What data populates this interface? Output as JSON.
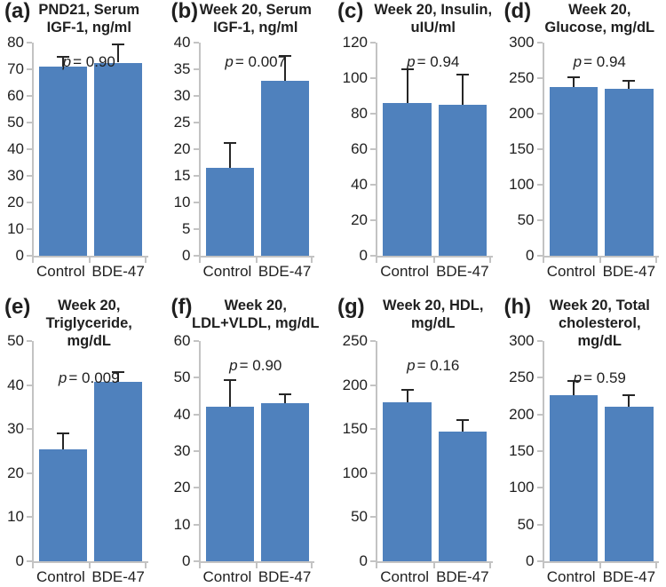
{
  "figure": {
    "description": "Eight-panel bar chart figure comparing Control vs BDE-47 groups",
    "group_labels": [
      "Control",
      "BDE-47"
    ]
  },
  "colors": {
    "bar": "#4F81BD",
    "axis": "#c3c3c3",
    "error_bar": "#262626",
    "text": "#1f1f1f"
  },
  "chart_data": [
    {
      "type": "bar",
      "letter": "(a)",
      "title": "PND21, Serum IGF-1, ng/ml",
      "title_lines": [
        "PND21, Serum",
        "IGF-1, ng/ml"
      ],
      "p_symbol": "p",
      "p_value": "= 0.90",
      "categories": [
        "Control",
        "BDE-47"
      ],
      "values": [
        71,
        72.5
      ],
      "errors_plus": [
        4,
        7
      ],
      "xlabel": "",
      "ylabel": "",
      "ylim": [
        0,
        80
      ],
      "ystep": 10,
      "grid": false,
      "legend": "none"
    },
    {
      "type": "bar",
      "letter": "(b)",
      "title": "Week 20, Serum IGF-1, ng/ml",
      "title_lines": [
        "Week 20, Serum",
        "IGF-1, ng/ml"
      ],
      "p_symbol": "p",
      "p_value": "= 0.007",
      "categories": [
        "Control",
        "BDE-47"
      ],
      "values": [
        16.5,
        32.8
      ],
      "errors_plus": [
        4.9,
        4.8
      ],
      "xlabel": "",
      "ylabel": "",
      "ylim": [
        0,
        40
      ],
      "ystep": 5,
      "grid": false,
      "legend": "none"
    },
    {
      "type": "bar",
      "letter": "(c)",
      "title": "Week 20, Insulin, uIU/ml",
      "title_lines": [
        "Week 20, Insulin,",
        "uIU/ml"
      ],
      "p_symbol": "p",
      "p_value": "= 0.94",
      "categories": [
        "Control",
        "BDE-47"
      ],
      "values": [
        86,
        85
      ],
      "errors_plus": [
        19.5,
        17.5
      ],
      "xlabel": "",
      "ylabel": "",
      "ylim": [
        0,
        120
      ],
      "ystep": 20,
      "grid": false,
      "legend": "none"
    },
    {
      "type": "bar",
      "letter": "(d)",
      "title": "Week 20, Glucose, mg/dL",
      "title_lines": [
        "Week 20,",
        "Glucose, mg/dL"
      ],
      "p_symbol": "p",
      "p_value": "= 0.94",
      "categories": [
        "Control",
        "BDE-47"
      ],
      "values": [
        237,
        235
      ],
      "errors_plus": [
        16,
        13
      ],
      "xlabel": "",
      "ylabel": "",
      "ylim": [
        0,
        300
      ],
      "ystep": 50,
      "grid": false,
      "legend": "none"
    },
    {
      "type": "bar",
      "letter": "(e)",
      "title": "Week 20, Triglyceride, mg/dL",
      "title_lines": [
        "Week 20,",
        "Triglyceride,",
        "mg/dL"
      ],
      "p_symbol": "p",
      "p_value": "= 0.009",
      "categories": [
        "Control",
        "BDE-47"
      ],
      "values": [
        25.5,
        40.7
      ],
      "errors_plus": [
        3.8,
        2.5
      ],
      "xlabel": "",
      "ylabel": "",
      "ylim": [
        0,
        50
      ],
      "ystep": 10,
      "grid": false,
      "legend": "none"
    },
    {
      "type": "bar",
      "letter": "(f)",
      "title": "Week 20, LDL+VLDL, mg/dL",
      "title_lines": [
        "Week 20,",
        "LDL+VLDL, mg/dL"
      ],
      "p_symbol": "p",
      "p_value": "= 0.90",
      "categories": [
        "Control",
        "BDE-47"
      ],
      "values": [
        42,
        43
      ],
      "errors_plus": [
        7.5,
        2.7
      ],
      "xlabel": "",
      "ylabel": "",
      "ylim": [
        0,
        60
      ],
      "ystep": 10,
      "grid": false,
      "legend": "none"
    },
    {
      "type": "bar",
      "letter": "(g)",
      "title": "Week 20, HDL, mg/dL",
      "title_lines": [
        "Week 20, HDL,",
        "mg/dL"
      ],
      "p_symbol": "p",
      "p_value": "= 0.16",
      "categories": [
        "Control",
        "BDE-47"
      ],
      "values": [
        180,
        147
      ],
      "errors_plus": [
        16,
        14
      ],
      "xlabel": "",
      "ylabel": "",
      "ylim": [
        0,
        250
      ],
      "ystep": 50,
      "grid": false,
      "legend": "none"
    },
    {
      "type": "bar",
      "letter": "(h)",
      "title": "Week 20, Total cholesterol, mg/dL",
      "title_lines": [
        "Week 20, Total",
        "cholesterol,",
        "mg/dL"
      ],
      "p_symbol": "p",
      "p_value": "= 0.59",
      "categories": [
        "Control",
        "BDE-47"
      ],
      "values": [
        226,
        211
      ],
      "errors_plus": [
        21,
        17
      ],
      "xlabel": "",
      "ylabel": "",
      "ylim": [
        0,
        300
      ],
      "ystep": 50,
      "grid": false,
      "legend": "none"
    }
  ]
}
